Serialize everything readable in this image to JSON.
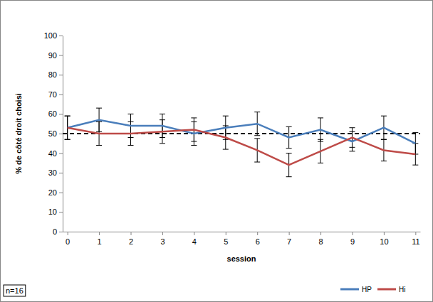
{
  "chart_data": {
    "type": "line",
    "x_label": "session",
    "y_label": "% de côté droit choisi",
    "categories": [
      "0",
      "1",
      "2",
      "3",
      "4",
      "5",
      "6",
      "7",
      "8",
      "9",
      "10",
      "11"
    ],
    "series": [
      {
        "name": "HP",
        "color": "#4a7ebb",
        "marker": "none",
        "line_style": "solid",
        "values": [
          53,
          57,
          54,
          54,
          50,
          53,
          55,
          48,
          52,
          46,
          53,
          45
        ],
        "errors": [
          6,
          6,
          6,
          6,
          6,
          6,
          6,
          5.5,
          6,
          5,
          6,
          5.5
        ]
      },
      {
        "name": "Hi",
        "color": "#be4b48",
        "marker": "none",
        "line_style": "solid",
        "values": [
          53,
          50,
          50,
          51,
          52,
          48,
          41.5,
          34,
          41,
          48,
          41.5,
          39.5
        ],
        "errors": [
          6,
          6,
          6,
          6,
          6,
          6,
          6,
          6,
          6,
          5,
          5.5,
          5.5
        ]
      }
    ],
    "reference_line": 50,
    "ylim": [
      0,
      100
    ],
    "yticks": [
      0,
      10,
      20,
      30,
      40,
      50,
      60,
      70,
      80,
      90,
      100
    ],
    "grid": false,
    "legend": "bottom",
    "annotations": [
      "n=16"
    ]
  }
}
